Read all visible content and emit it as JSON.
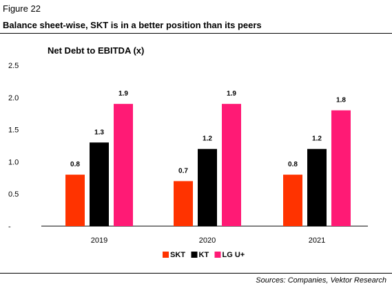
{
  "figure_label": "Figure 22",
  "headline": "Balance sheet-wise, SKT is in a better position than its peers",
  "source": "Sources: Companies, Vektor Research",
  "chart_data": {
    "type": "bar",
    "title": "Net Debt to EBITDA (x)",
    "categories": [
      "2019",
      "2020",
      "2021"
    ],
    "series": [
      {
        "name": "SKT",
        "color": "#ff3300",
        "values": [
          0.8,
          0.7,
          0.8
        ]
      },
      {
        "name": "KT",
        "color": "#000000",
        "values": [
          1.3,
          1.2,
          1.2
        ]
      },
      {
        "name": "LG U+",
        "color": "#ff1a75",
        "values": [
          1.9,
          1.9,
          1.8
        ]
      }
    ],
    "data_labels": [
      [
        "0.8",
        "1.3",
        "1.9"
      ],
      [
        "0.7",
        "1.2",
        "1.9"
      ],
      [
        "0.8",
        "1.2",
        "1.8"
      ]
    ],
    "yticks": [
      "2.5",
      "2.0",
      "1.5",
      "1.0",
      "0.5",
      "-"
    ],
    "ylim": [
      0,
      2.5
    ],
    "grid": false,
    "legend_position": "bottom"
  }
}
